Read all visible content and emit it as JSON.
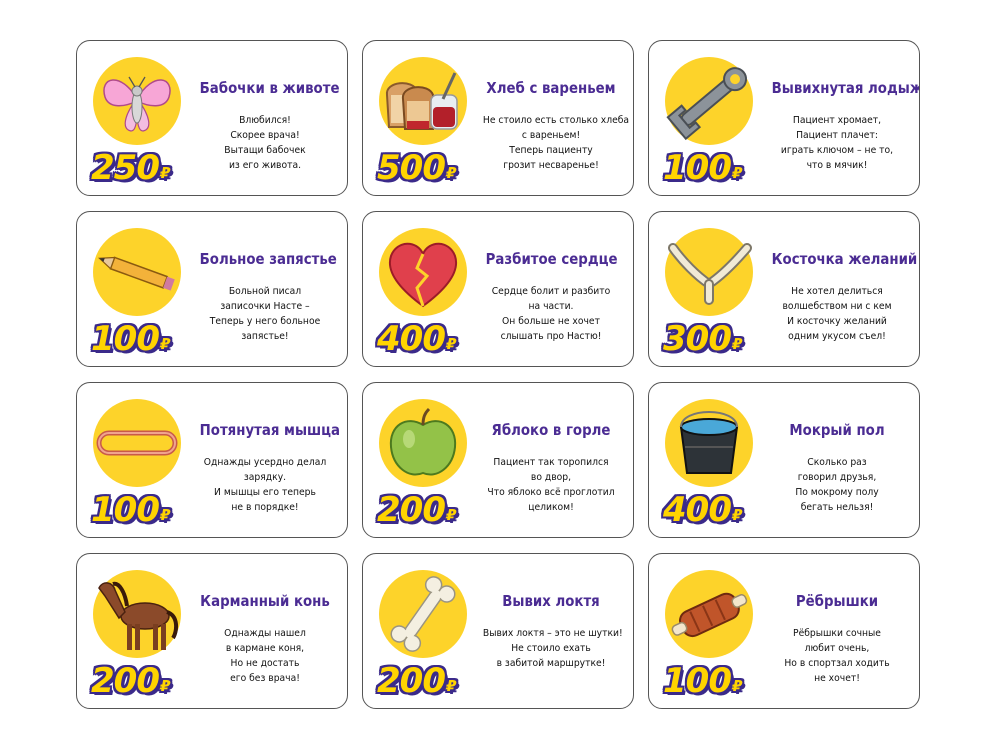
{
  "currency_symbol": "₽",
  "colors": {
    "badge": "#fdd32a",
    "title": "#4b2c93",
    "price_fill": "#ffd400",
    "price_outline": "#3b2a8a"
  },
  "cards": [
    {
      "title": "Бабочки в животе",
      "price": "250",
      "icon": "butterfly-icon",
      "lines": [
        "Влюбился!",
        "Скорее врача!",
        "Вытащи бабочек",
        "из его живота."
      ]
    },
    {
      "title": "Хлеб с вареньем",
      "price": "500",
      "icon": "bread-jam-icon",
      "lines": [
        "Не стоило есть столько хлеба",
        "с вареньем!",
        "Теперь пациенту",
        "грозит несваренье!"
      ]
    },
    {
      "title": "Вывихнутая лодыжка",
      "price": "100",
      "icon": "wrench-icon",
      "lines": [
        "Пациент хромает,",
        "Пациент плачет:",
        "играть ключом – не то,",
        "что в мячик!"
      ]
    },
    {
      "title": "Больное запястье",
      "price": "100",
      "icon": "pencil-icon",
      "lines": [
        "Больной писал",
        "записочки Насте –",
        "Теперь у него больное",
        "запястье!"
      ]
    },
    {
      "title": "Разбитое сердце",
      "price": "400",
      "icon": "broken-heart-icon",
      "lines": [
        "Сердце болит и разбито",
        "на части.",
        "Он больше не хочет",
        "слышать про Настю!"
      ]
    },
    {
      "title": "Косточка желаний",
      "price": "300",
      "icon": "wishbone-icon",
      "lines": [
        "Не хотел делиться",
        "волшебством ни с кем",
        "И косточку желаний",
        "одним укусом съел!"
      ]
    },
    {
      "title": "Потянутая мышца",
      "price": "100",
      "icon": "rubber-band-icon",
      "lines": [
        "Однажды усердно делал",
        "зарядку.",
        "И мышцы его теперь",
        "не в порядке!"
      ]
    },
    {
      "title": "Яблоко в горле",
      "price": "200",
      "icon": "apple-icon",
      "lines": [
        "Пациент так торопился",
        "во двор,",
        "Что яблоко всё проглотил",
        "целиком!"
      ]
    },
    {
      "title": "Мокрый пол",
      "price": "400",
      "icon": "bucket-icon",
      "lines": [
        "Сколько раз",
        "говорил друзья,",
        "По мокрому полу",
        "бегать нельзя!"
      ]
    },
    {
      "title": "Карманный конь",
      "price": "200",
      "icon": "horse-icon",
      "lines": [
        "Однажды нашел",
        "в кармане коня,",
        "Но не достать",
        "его без врача!"
      ]
    },
    {
      "title": "Вывих локтя",
      "price": "200",
      "icon": "bone-icon",
      "lines": [
        "Вывих локтя – это не шутки!",
        "Не стоило ехать",
        "в забитой маршрутке!"
      ]
    },
    {
      "title": "Рёбрышки",
      "price": "100",
      "icon": "ribs-icon",
      "lines": [
        "Рёбрышки сочные",
        "любит очень,",
        "Но в спортзал ходить",
        "не хочет!"
      ]
    }
  ]
}
